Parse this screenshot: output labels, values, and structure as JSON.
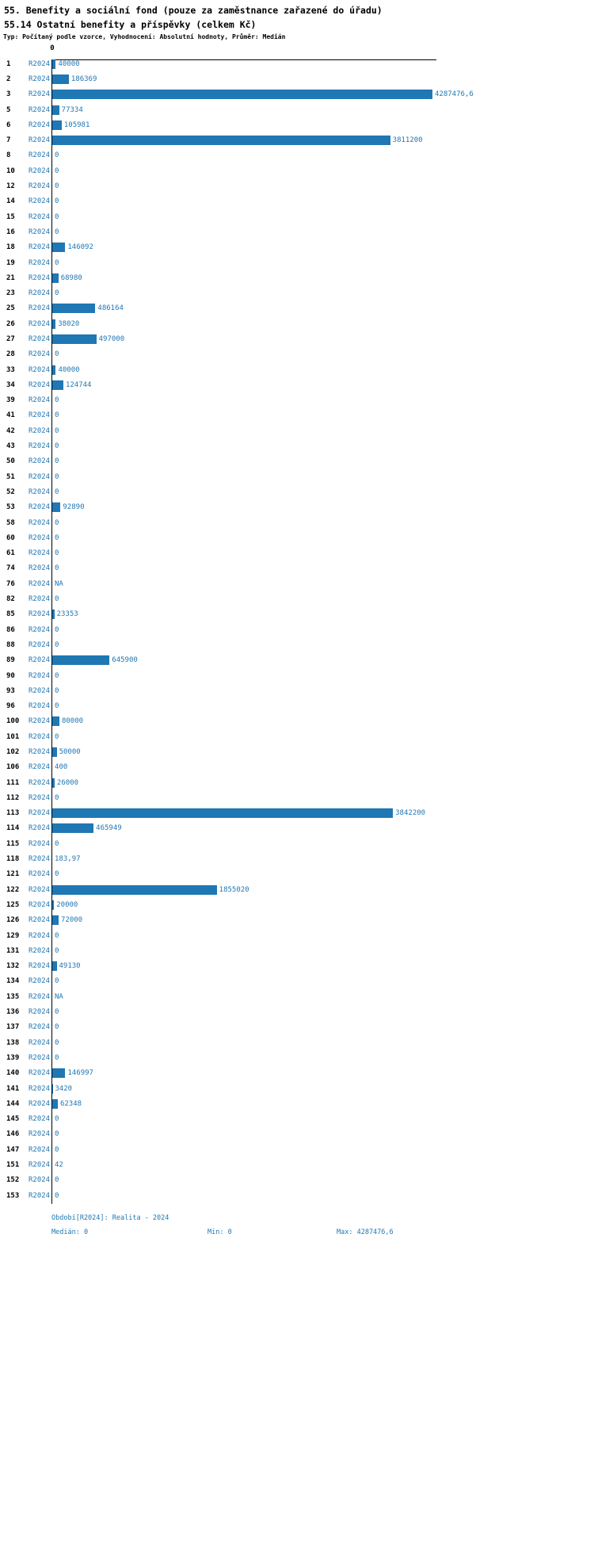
{
  "header": {
    "title": "55. Benefity a sociální fond (pouze za zaměstnance zařazené do úřadu)",
    "subtitle": "55.14 Ostatní benefity a příspěvky (celkem Kč)",
    "meta": "Typ: Počítaný podle vzorce, Vyhodnocení: Absolutní hodnoty, Průměr: Medián"
  },
  "chart_data": {
    "type": "bar",
    "orientation": "horizontal",
    "title": "55. Benefity a sociální fond (pouze za zaměstnance zařazené do úřadu)",
    "subtitle": "55.14 Ostatní benefity a příspěvky (celkem Kč)",
    "series_label": "R2024",
    "bar_color": "#1f77b4",
    "text_color": "#1f77b4",
    "x_axis": {
      "zero_label": "0",
      "min": 0,
      "max": 4287476.6
    },
    "grid": false,
    "rows": [
      {
        "id": "1",
        "label": "40000",
        "value": 40000
      },
      {
        "id": "2",
        "label": "186369",
        "value": 186369
      },
      {
        "id": "3",
        "label": "4287476,6",
        "value": 4287476.6
      },
      {
        "id": "5",
        "label": "77334",
        "value": 77334
      },
      {
        "id": "6",
        "label": "105981",
        "value": 105981
      },
      {
        "id": "7",
        "label": "3811200",
        "value": 3811200
      },
      {
        "id": "8",
        "label": "0",
        "value": 0
      },
      {
        "id": "10",
        "label": "0",
        "value": 0
      },
      {
        "id": "12",
        "label": "0",
        "value": 0
      },
      {
        "id": "14",
        "label": "0",
        "value": 0
      },
      {
        "id": "15",
        "label": "0",
        "value": 0
      },
      {
        "id": "16",
        "label": "0",
        "value": 0
      },
      {
        "id": "18",
        "label": "146092",
        "value": 146092
      },
      {
        "id": "19",
        "label": "0",
        "value": 0
      },
      {
        "id": "21",
        "label": "68980",
        "value": 68980
      },
      {
        "id": "23",
        "label": "0",
        "value": 0
      },
      {
        "id": "25",
        "label": "486164",
        "value": 486164
      },
      {
        "id": "26",
        "label": "38020",
        "value": 38020
      },
      {
        "id": "27",
        "label": "497000",
        "value": 497000
      },
      {
        "id": "28",
        "label": "0",
        "value": 0
      },
      {
        "id": "33",
        "label": "40000",
        "value": 40000
      },
      {
        "id": "34",
        "label": "124744",
        "value": 124744
      },
      {
        "id": "39",
        "label": "0",
        "value": 0
      },
      {
        "id": "41",
        "label": "0",
        "value": 0
      },
      {
        "id": "42",
        "label": "0",
        "value": 0
      },
      {
        "id": "43",
        "label": "0",
        "value": 0
      },
      {
        "id": "50",
        "label": "0",
        "value": 0
      },
      {
        "id": "51",
        "label": "0",
        "value": 0
      },
      {
        "id": "52",
        "label": "0",
        "value": 0
      },
      {
        "id": "53",
        "label": "92890",
        "value": 92890
      },
      {
        "id": "58",
        "label": "0",
        "value": 0
      },
      {
        "id": "60",
        "label": "0",
        "value": 0
      },
      {
        "id": "61",
        "label": "0",
        "value": 0
      },
      {
        "id": "74",
        "label": "0",
        "value": 0
      },
      {
        "id": "76",
        "label": "NA",
        "value": null
      },
      {
        "id": "82",
        "label": "0",
        "value": 0
      },
      {
        "id": "85",
        "label": "23353",
        "value": 23353
      },
      {
        "id": "86",
        "label": "0",
        "value": 0
      },
      {
        "id": "88",
        "label": "0",
        "value": 0
      },
      {
        "id": "89",
        "label": "645900",
        "value": 645900
      },
      {
        "id": "90",
        "label": "0",
        "value": 0
      },
      {
        "id": "93",
        "label": "0",
        "value": 0
      },
      {
        "id": "96",
        "label": "0",
        "value": 0
      },
      {
        "id": "100",
        "label": "80000",
        "value": 80000
      },
      {
        "id": "101",
        "label": "0",
        "value": 0
      },
      {
        "id": "102",
        "label": "50000",
        "value": 50000
      },
      {
        "id": "106",
        "label": "400",
        "value": 400
      },
      {
        "id": "111",
        "label": "26000",
        "value": 26000
      },
      {
        "id": "112",
        "label": "0",
        "value": 0
      },
      {
        "id": "113",
        "label": "3842200",
        "value": 3842200
      },
      {
        "id": "114",
        "label": "465949",
        "value": 465949
      },
      {
        "id": "115",
        "label": "0",
        "value": 0
      },
      {
        "id": "118",
        "label": "183,97",
        "value": 183.97
      },
      {
        "id": "121",
        "label": "0",
        "value": 0
      },
      {
        "id": "122",
        "label": "1855020",
        "value": 1855020
      },
      {
        "id": "125",
        "label": "20000",
        "value": 20000
      },
      {
        "id": "126",
        "label": "72000",
        "value": 72000
      },
      {
        "id": "129",
        "label": "0",
        "value": 0
      },
      {
        "id": "131",
        "label": "0",
        "value": 0
      },
      {
        "id": "132",
        "label": "49130",
        "value": 49130
      },
      {
        "id": "134",
        "label": "0",
        "value": 0
      },
      {
        "id": "135",
        "label": "NA",
        "value": null
      },
      {
        "id": "136",
        "label": "0",
        "value": 0
      },
      {
        "id": "137",
        "label": "0",
        "value": 0
      },
      {
        "id": "138",
        "label": "0",
        "value": 0
      },
      {
        "id": "139",
        "label": "0",
        "value": 0
      },
      {
        "id": "140",
        "label": "146997",
        "value": 146997
      },
      {
        "id": "141",
        "label": "3420",
        "value": 3420
      },
      {
        "id": "144",
        "label": "62348",
        "value": 62348
      },
      {
        "id": "145",
        "label": "0",
        "value": 0
      },
      {
        "id": "146",
        "label": "0",
        "value": 0
      },
      {
        "id": "147",
        "label": "0",
        "value": 0
      },
      {
        "id": "151",
        "label": "42",
        "value": 42
      },
      {
        "id": "152",
        "label": "0",
        "value": 0
      },
      {
        "id": "153",
        "label": "0",
        "value": 0
      }
    ]
  },
  "footer": {
    "period": "Období[R2024]: Realita - 2024",
    "median": "Medián: 0",
    "min": "Min: 0",
    "max": "Max: 4287476,6"
  }
}
